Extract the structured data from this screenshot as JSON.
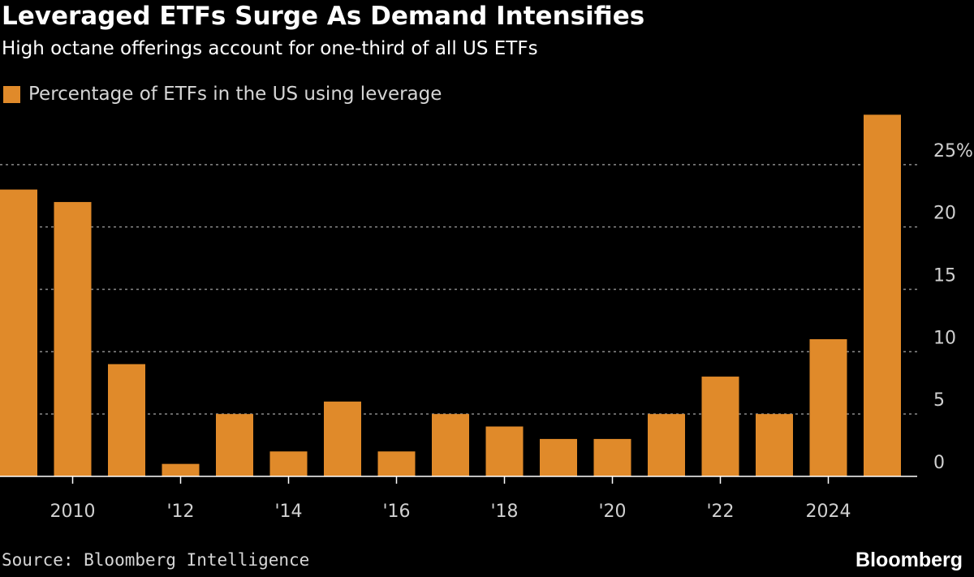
{
  "title": "Leveraged ETFs Surge As Demand Intensifies",
  "subtitle": "High octane offerings account for one-third of all US ETFs",
  "source": "Source: Bloomberg Intelligence",
  "brand": "Bloomberg",
  "colors": {
    "bar": "#e08a2a",
    "background": "#000000",
    "grid": "#8a8a8a"
  },
  "chart_data": {
    "type": "bar",
    "x": [
      2009,
      2010,
      2011,
      2012,
      2013,
      2014,
      2015,
      2016,
      2017,
      2018,
      2019,
      2020,
      2021,
      2022,
      2023,
      2024,
      2025
    ],
    "series": [
      {
        "name": "Percentage of ETFs in the US using leverage",
        "values": [
          23,
          22,
          9,
          1,
          5,
          2,
          6,
          2,
          5,
          4,
          3,
          3,
          5,
          8,
          5,
          11,
          29
        ]
      }
    ],
    "x_tick_labels": [
      {
        "x": 2010,
        "label": "2010"
      },
      {
        "x": 2012,
        "label": "'12"
      },
      {
        "x": 2014,
        "label": "'14"
      },
      {
        "x": 2016,
        "label": "'16"
      },
      {
        "x": 2018,
        "label": "'18"
      },
      {
        "x": 2020,
        "label": "'20"
      },
      {
        "x": 2022,
        "label": "'22"
      },
      {
        "x": 2024,
        "label": "2024"
      }
    ],
    "y_ticks": [
      {
        "value": 0,
        "label": "0"
      },
      {
        "value": 5,
        "label": "5"
      },
      {
        "value": 10,
        "label": "10"
      },
      {
        "value": 15,
        "label": "15"
      },
      {
        "value": 20,
        "label": "20"
      },
      {
        "value": 25,
        "label": "25%"
      }
    ],
    "ylim": [
      0,
      30
    ],
    "grid": true,
    "y_axis_position": "right",
    "legend_position": "top-left"
  }
}
